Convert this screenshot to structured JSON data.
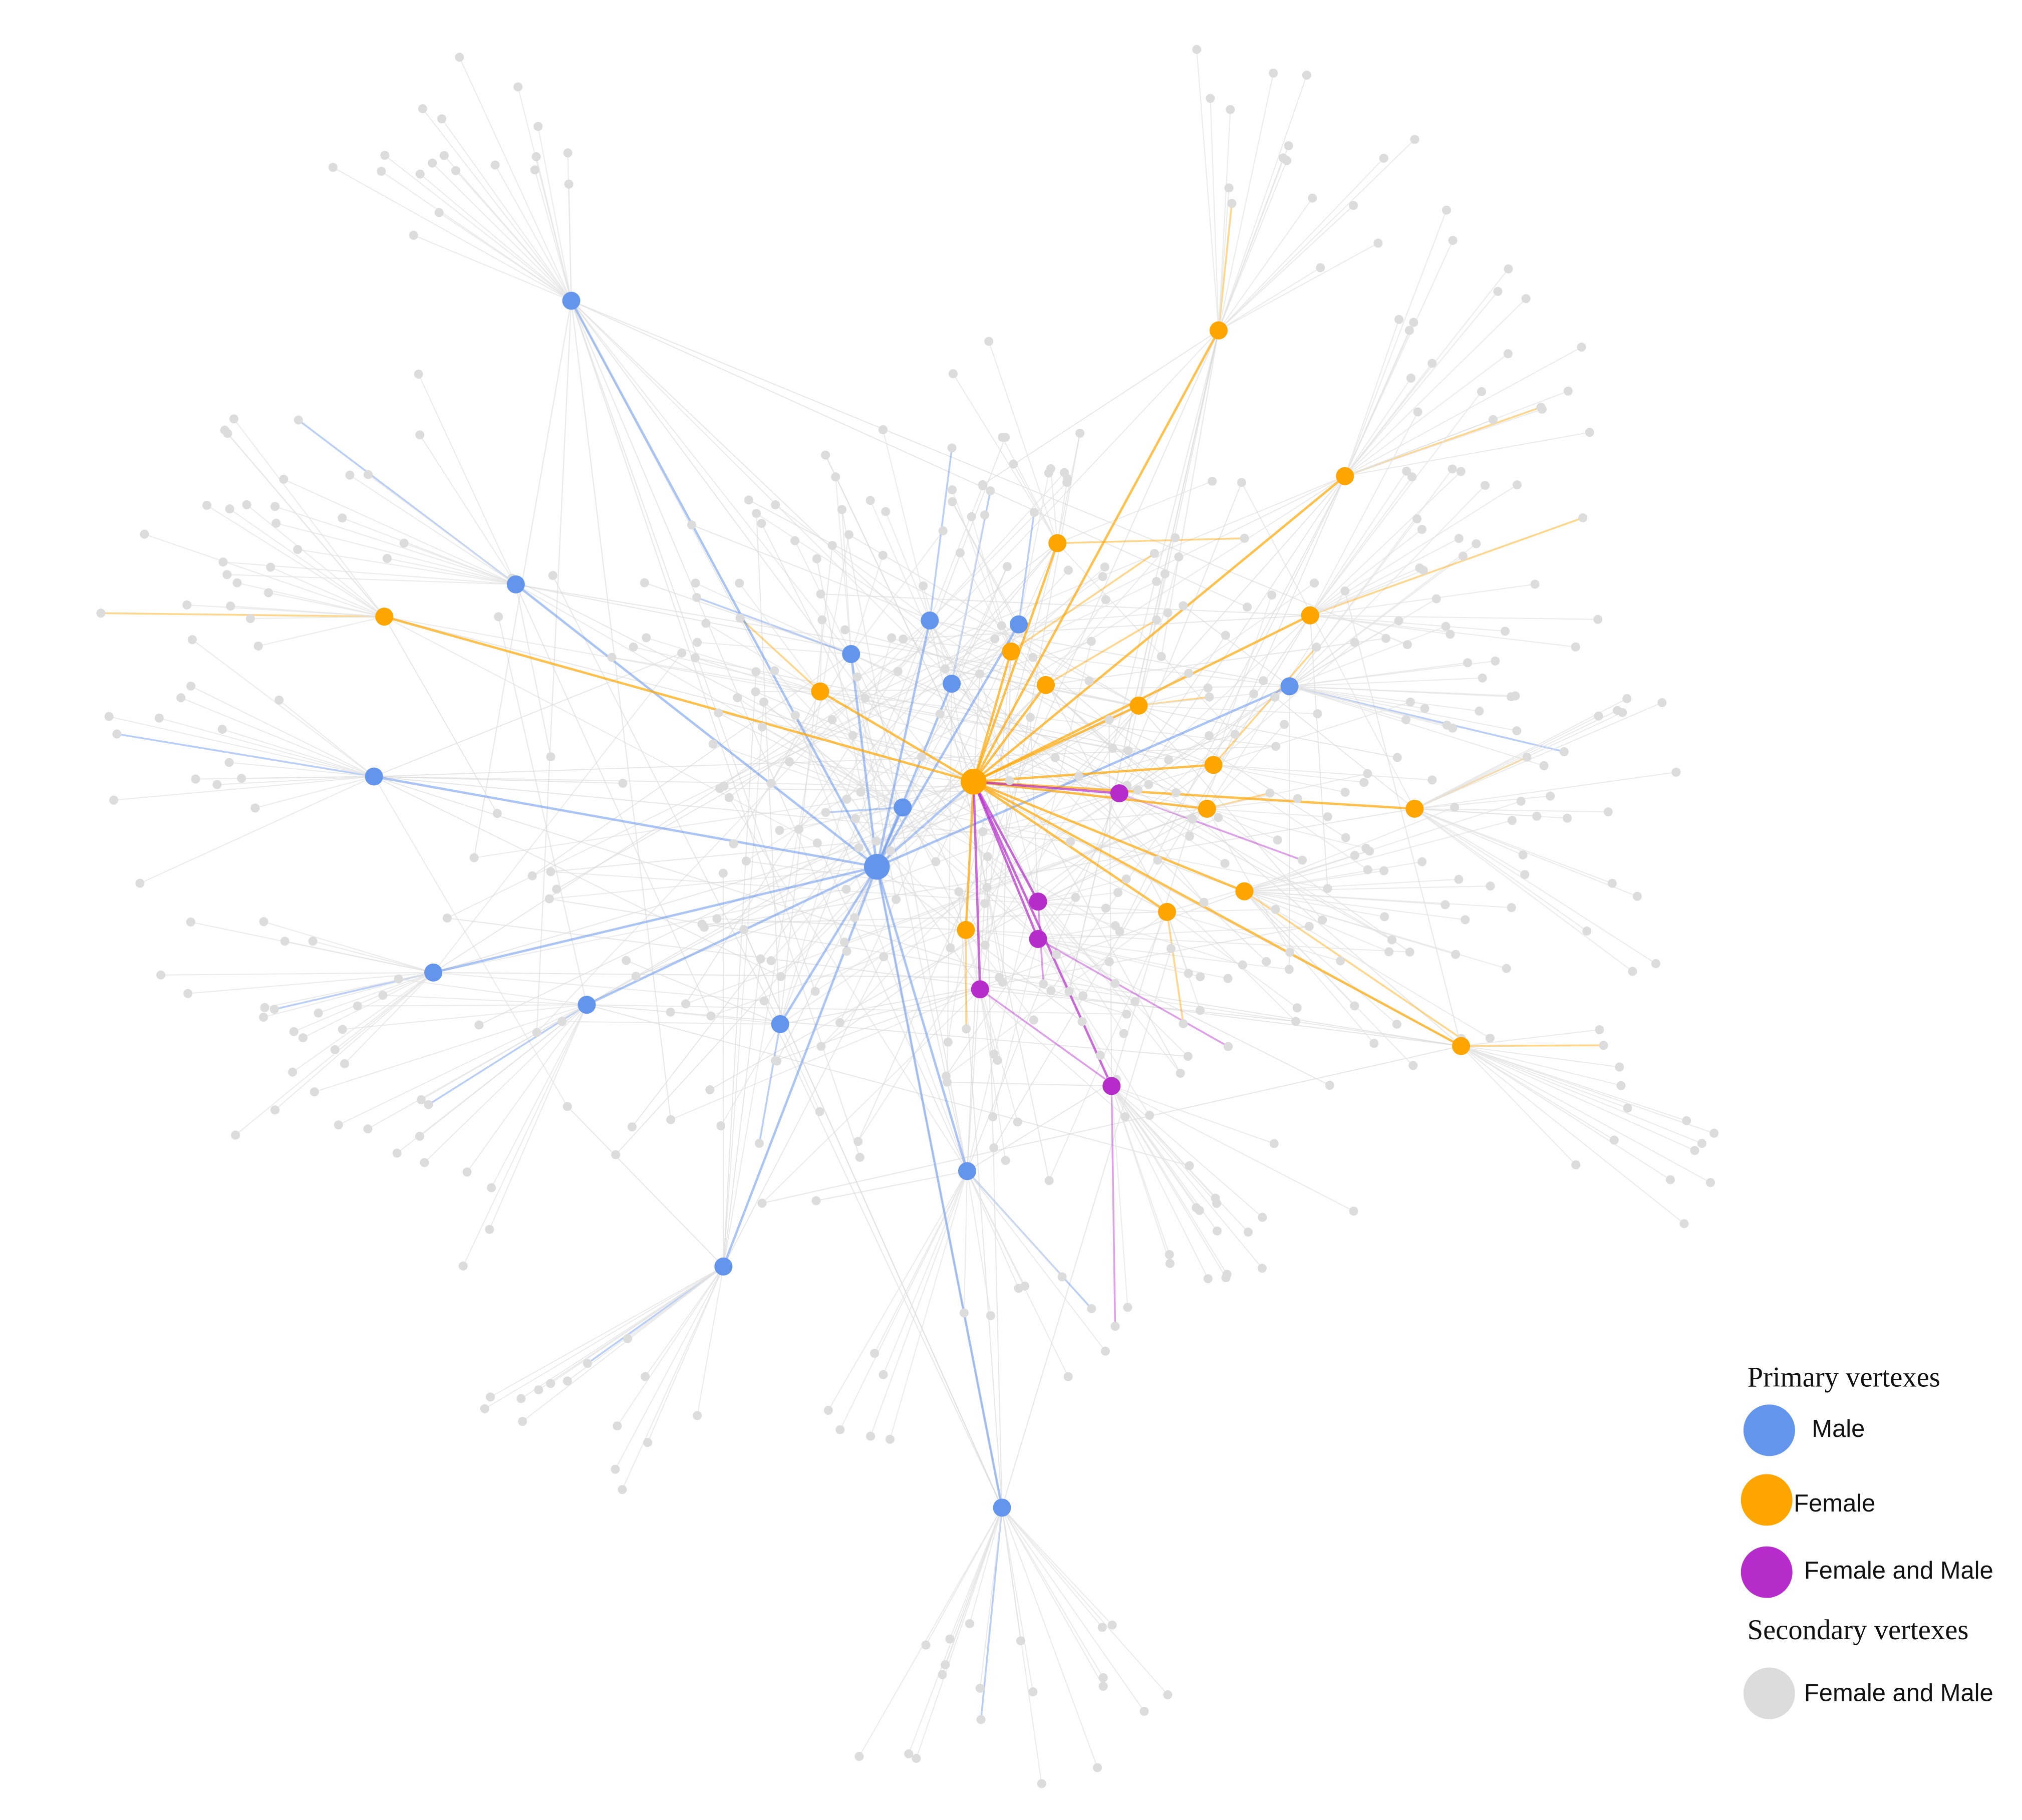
{
  "legend": {
    "primary_title": "Primary vertexes",
    "primary": [
      {
        "label": "Male",
        "color": "#6495ed"
      },
      {
        "label": "Female",
        "color": "#ffa500"
      },
      {
        "label": "Female and Male",
        "color": "#b52ccb"
      }
    ],
    "secondary_title": "Secondary vertexes",
    "secondary": [
      {
        "label": "Female and Male",
        "color": "#dcdcdc"
      }
    ]
  }
}
